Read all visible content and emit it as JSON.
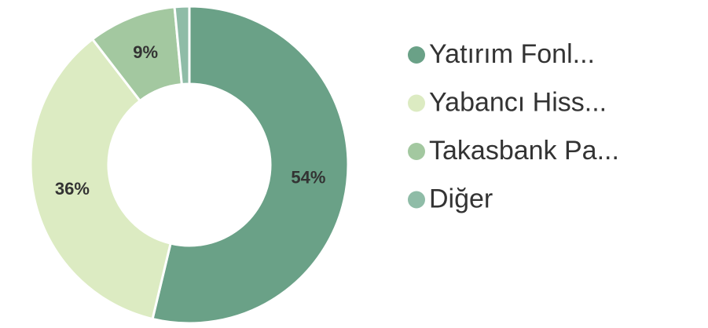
{
  "chart_data": {
    "type": "donut",
    "categories": [
      "Yatırım Fonl...",
      "Yabancı Hiss...",
      "Takasbank Pa...",
      "Diğer"
    ],
    "values": [
      54,
      36,
      9,
      1.5
    ],
    "value_labels": [
      "54%",
      "36%",
      "9%",
      null
    ],
    "colors": [
      "#6aa187",
      "#dcebc2",
      "#a3c8a0",
      "#8fbca7"
    ],
    "legend": "right"
  }
}
